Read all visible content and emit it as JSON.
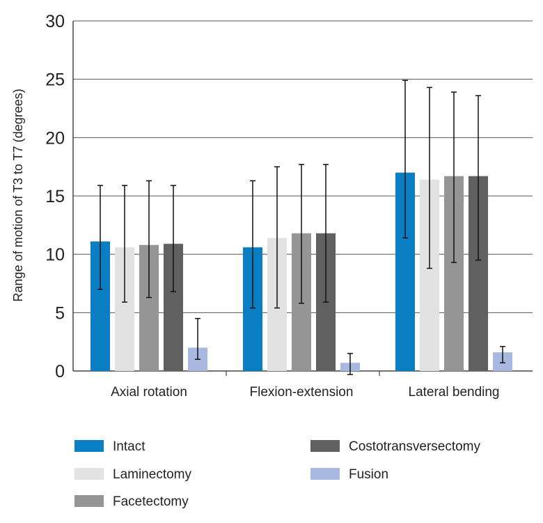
{
  "chart_data": {
    "type": "bar",
    "title": "",
    "xlabel": "",
    "ylabel": "Range of motion of T3 to T7 (degrees)",
    "ylim": [
      0,
      30
    ],
    "yticks": [
      0,
      5,
      10,
      15,
      20,
      25,
      30
    ],
    "grid": true,
    "categories": [
      "Axial rotation",
      "Flexion-extension",
      "Lateral bending"
    ],
    "series": [
      {
        "name": "Intact",
        "color": "#0a7ec2",
        "values": [
          11.1,
          10.6,
          17.0
        ],
        "err_low": [
          7.0,
          5.4,
          11.4
        ],
        "err_high": [
          15.9,
          16.3,
          24.9
        ]
      },
      {
        "name": "Laminectomy",
        "color": "#e2e2e2",
        "values": [
          10.6,
          11.4,
          16.4
        ],
        "err_low": [
          5.9,
          5.4,
          8.8
        ],
        "err_high": [
          15.9,
          17.5,
          24.3
        ]
      },
      {
        "name": "Facetectomy",
        "color": "#959595",
        "values": [
          10.8,
          11.8,
          16.7
        ],
        "err_low": [
          6.3,
          5.8,
          9.3
        ],
        "err_high": [
          16.3,
          17.7,
          23.9
        ]
      },
      {
        "name": "Costotransversectomy",
        "color": "#606060",
        "values": [
          10.9,
          11.8,
          16.7
        ],
        "err_low": [
          6.8,
          5.9,
          9.5
        ],
        "err_high": [
          15.9,
          17.7,
          23.6
        ]
      },
      {
        "name": "Fusion",
        "color": "#a8b8e0",
        "values": [
          2.0,
          0.7,
          1.6
        ],
        "err_low": [
          1.0,
          -0.3,
          0.7
        ],
        "err_high": [
          4.5,
          1.5,
          2.1
        ]
      }
    ],
    "legend": {
      "placement": "bottom",
      "columns": [
        [
          "Intact",
          "Laminectomy",
          "Facetectomy"
        ],
        [
          "Costotransversectomy",
          "Fusion"
        ]
      ]
    }
  }
}
